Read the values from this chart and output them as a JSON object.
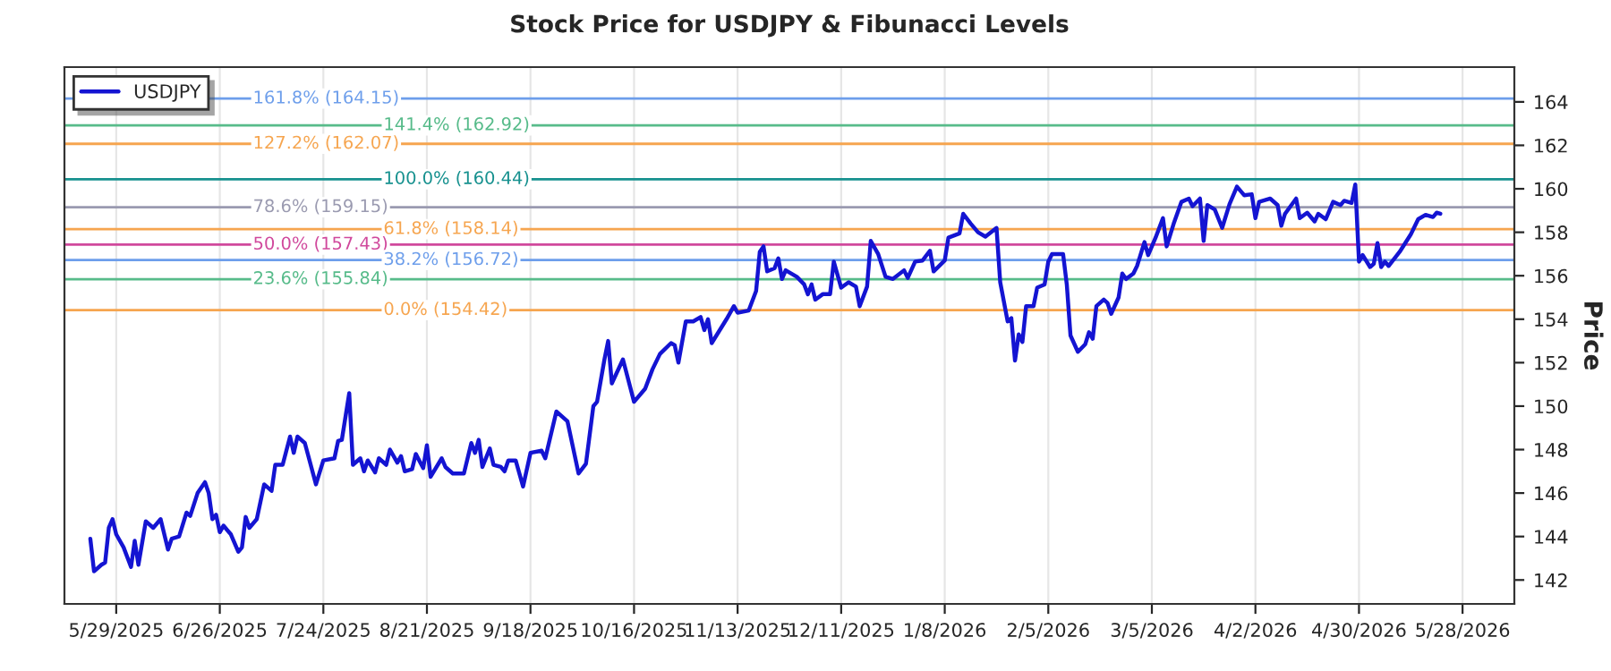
{
  "chart_data": {
    "type": "line",
    "title": "Stock Price for USDJPY & Fibunacci Levels",
    "ylabel": "Price",
    "x": [
      "2025-05-22",
      "2025-05-23",
      "2025-05-25",
      "2025-05-26",
      "2025-05-27",
      "2025-05-28",
      "2025-05-29",
      "2025-05-31",
      "2025-06-02",
      "2025-06-03",
      "2025-06-04",
      "2025-06-06",
      "2025-06-08",
      "2025-06-10",
      "2025-06-12",
      "2025-06-13",
      "2025-06-15",
      "2025-06-17",
      "2025-06-18",
      "2025-06-20",
      "2025-06-22",
      "2025-06-23",
      "2025-06-24",
      "2025-06-25",
      "2025-06-26",
      "2025-06-27",
      "2025-06-29",
      "2025-07-01",
      "2025-07-02",
      "2025-07-03",
      "2025-07-04",
      "2025-07-06",
      "2025-07-08",
      "2025-07-10",
      "2025-07-11",
      "2025-07-13",
      "2025-07-15",
      "2025-07-16",
      "2025-07-17",
      "2025-07-19",
      "2025-07-22",
      "2025-07-24",
      "2025-07-27",
      "2025-07-28",
      "2025-07-29",
      "2025-07-31",
      "2025-08-01",
      "2025-08-03",
      "2025-08-04",
      "2025-08-05",
      "2025-08-07",
      "2025-08-08",
      "2025-08-10",
      "2025-08-11",
      "2025-08-13",
      "2025-08-14",
      "2025-08-15",
      "2025-08-17",
      "2025-08-18",
      "2025-08-20",
      "2025-08-21",
      "2025-08-22",
      "2025-08-25",
      "2025-08-26",
      "2025-08-28",
      "2025-08-31",
      "2025-09-02",
      "2025-09-03",
      "2025-09-04",
      "2025-09-05",
      "2025-09-07",
      "2025-09-08",
      "2025-09-10",
      "2025-09-11",
      "2025-09-12",
      "2025-09-14",
      "2025-09-16",
      "2025-09-18",
      "2025-09-21",
      "2025-09-22",
      "2025-09-25",
      "2025-09-28",
      "2025-10-01",
      "2025-10-03",
      "2025-10-05",
      "2025-10-06",
      "2025-10-08",
      "2025-10-09",
      "2025-10-10",
      "2025-10-13",
      "2025-10-16",
      "2025-10-19",
      "2025-10-21",
      "2025-10-23",
      "2025-10-26",
      "2025-10-27",
      "2025-10-28",
      "2025-10-30",
      "2025-11-01",
      "2025-11-03",
      "2025-11-04",
      "2025-11-05",
      "2025-11-06",
      "2025-11-10",
      "2025-11-12",
      "2025-11-13",
      "2025-11-16",
      "2025-11-18",
      "2025-11-19",
      "2025-11-20",
      "2025-11-21",
      "2025-11-23",
      "2025-11-24",
      "2025-11-25",
      "2025-11-26",
      "2025-11-29",
      "2025-12-01",
      "2025-12-02",
      "2025-12-03",
      "2025-12-04",
      "2025-12-06",
      "2025-12-08",
      "2025-12-09",
      "2025-12-11",
      "2025-12-13",
      "2025-12-15",
      "2025-12-16",
      "2025-12-18",
      "2025-12-19",
      "2025-12-21",
      "2025-12-23",
      "2025-12-25",
      "2025-12-28",
      "2025-12-29",
      "2025-12-31",
      "2026-01-02",
      "2026-01-04",
      "2026-01-05",
      "2026-01-08",
      "2026-01-09",
      "2026-01-12",
      "2026-01-13",
      "2026-01-15",
      "2026-01-17",
      "2026-01-19",
      "2026-01-22",
      "2026-01-23",
      "2026-01-25",
      "2026-01-26",
      "2026-01-27",
      "2026-01-28",
      "2026-01-29",
      "2026-01-30",
      "2026-02-01",
      "2026-02-02",
      "2026-02-04",
      "2026-02-05",
      "2026-02-06",
      "2026-02-09",
      "2026-02-10",
      "2026-02-11",
      "2026-02-13",
      "2026-02-15",
      "2026-02-16",
      "2026-02-17",
      "2026-02-18",
      "2026-02-20",
      "2026-02-21",
      "2026-02-22",
      "2026-02-24",
      "2026-02-25",
      "2026-02-26",
      "2026-02-28",
      "2026-03-01",
      "2026-03-03",
      "2026-03-04",
      "2026-03-06",
      "2026-03-08",
      "2026-03-09",
      "2026-03-11",
      "2026-03-13",
      "2026-03-15",
      "2026-03-16",
      "2026-03-18",
      "2026-03-19",
      "2026-03-20",
      "2026-03-22",
      "2026-03-24",
      "2026-03-26",
      "2026-03-28",
      "2026-03-30",
      "2026-04-01",
      "2026-04-02",
      "2026-04-03",
      "2026-04-06",
      "2026-04-08",
      "2026-04-09",
      "2026-04-10",
      "2026-04-13",
      "2026-04-14",
      "2026-04-16",
      "2026-04-18",
      "2026-04-19",
      "2026-04-21",
      "2026-04-23",
      "2026-04-25",
      "2026-04-26",
      "2026-04-28",
      "2026-04-29",
      "2026-04-30",
      "2026-05-01",
      "2026-05-03",
      "2026-05-04",
      "2026-05-05",
      "2026-05-06",
      "2026-05-07",
      "2026-05-08",
      "2026-05-11",
      "2026-05-14",
      "2026-05-16",
      "2026-05-18",
      "2026-05-20",
      "2026-05-21",
      "2026-05-22"
    ],
    "series": [
      {
        "name": "USDJPY",
        "color": "#1414d2",
        "values": [
          143.9,
          142.4,
          142.7,
          142.8,
          144.4,
          144.8,
          144.1,
          143.5,
          142.6,
          143.8,
          142.7,
          144.7,
          144.4,
          144.8,
          143.4,
          143.9,
          144.0,
          145.1,
          144.95,
          146.0,
          146.5,
          146.0,
          144.8,
          145.0,
          144.2,
          144.5,
          144.1,
          143.3,
          143.5,
          144.9,
          144.4,
          144.8,
          146.4,
          146.1,
          147.3,
          147.3,
          148.6,
          147.85,
          148.6,
          148.3,
          146.4,
          147.5,
          147.6,
          148.4,
          148.45,
          150.6,
          147.3,
          147.6,
          147.0,
          147.5,
          146.95,
          147.6,
          147.3,
          148.0,
          147.4,
          147.7,
          147.0,
          147.1,
          147.8,
          147.15,
          148.2,
          146.75,
          147.6,
          147.2,
          146.9,
          146.9,
          148.3,
          147.85,
          148.45,
          147.2,
          148.05,
          147.3,
          147.2,
          147.0,
          147.5,
          147.5,
          146.3,
          147.85,
          147.95,
          147.6,
          149.75,
          149.3,
          146.9,
          147.35,
          150.0,
          150.2,
          152.15,
          153.0,
          151.05,
          152.15,
          150.2,
          150.8,
          151.7,
          152.4,
          152.9,
          152.8,
          152.0,
          153.9,
          153.9,
          154.1,
          153.5,
          154.0,
          152.9,
          154.0,
          154.6,
          154.3,
          154.4,
          155.3,
          157.1,
          157.35,
          156.2,
          156.35,
          156.8,
          155.85,
          156.25,
          155.95,
          155.6,
          155.15,
          155.6,
          154.9,
          155.15,
          155.15,
          156.65,
          155.45,
          155.7,
          155.5,
          154.6,
          155.5,
          157.6,
          157.0,
          155.95,
          155.85,
          156.25,
          155.9,
          156.65,
          156.7,
          157.15,
          156.2,
          156.7,
          157.75,
          157.95,
          158.85,
          158.4,
          158.0,
          157.8,
          158.2,
          155.7,
          153.9,
          154.05,
          152.1,
          153.3,
          152.95,
          154.6,
          154.6,
          155.45,
          155.6,
          156.65,
          157.0,
          157.0,
          155.6,
          153.25,
          152.5,
          152.85,
          153.4,
          153.1,
          154.6,
          154.9,
          154.75,
          154.25,
          155.0,
          156.1,
          155.85,
          156.1,
          156.45,
          157.55,
          156.95,
          157.75,
          158.65,
          157.35,
          158.45,
          159.4,
          159.55,
          159.2,
          159.55,
          157.6,
          159.25,
          159.05,
          158.2,
          159.3,
          160.1,
          159.7,
          159.75,
          158.65,
          159.4,
          159.55,
          159.25,
          158.3,
          158.85,
          159.55,
          158.65,
          158.9,
          158.5,
          158.85,
          158.6,
          159.4,
          159.25,
          159.45,
          159.35,
          160.2,
          156.65,
          156.95,
          156.4,
          156.55,
          157.5,
          156.4,
          156.65,
          156.45,
          157.1,
          157.9,
          158.6,
          158.8,
          158.7,
          158.9,
          158.85
        ]
      }
    ],
    "ref_lines": [
      {
        "axis": "y",
        "value": 164.15,
        "label": "161.8% (164.15)",
        "color": "#6d9eeb"
      },
      {
        "axis": "y",
        "value": 162.92,
        "label": "141.4% (162.92)",
        "color": "#57bb8a"
      },
      {
        "axis": "y",
        "value": 162.07,
        "label": "127.2% (162.07)",
        "color": "#f6a54f"
      },
      {
        "axis": "y",
        "value": 160.44,
        "label": "100.0% (160.44)",
        "color": "#17918f"
      },
      {
        "axis": "y",
        "value": 159.15,
        "label": "78.6% (159.15)",
        "color": "#9a9ab0"
      },
      {
        "axis": "y",
        "value": 158.14,
        "label": "61.8% (158.14)",
        "color": "#f6a54f"
      },
      {
        "axis": "y",
        "value": 157.43,
        "label": "50.0% (157.43)",
        "color": "#d0489c"
      },
      {
        "axis": "y",
        "value": 156.72,
        "label": "38.2% (156.72)",
        "color": "#6d9eeb"
      },
      {
        "axis": "y",
        "value": 155.84,
        "label": "23.6% (155.84)",
        "color": "#57bb8a"
      },
      {
        "axis": "y",
        "value": 154.42,
        "label": "0.0% (154.42)",
        "color": "#f6a54f"
      }
    ],
    "xlim": [
      "2025-05-15",
      "2026-06-11"
    ],
    "xticks": [
      {
        "value": "2025-05-29",
        "label": "5/29/2025"
      },
      {
        "value": "2025-06-26",
        "label": "6/26/2025"
      },
      {
        "value": "2025-07-24",
        "label": "7/24/2025"
      },
      {
        "value": "2025-08-21",
        "label": "8/21/2025"
      },
      {
        "value": "2025-09-18",
        "label": "9/18/2025"
      },
      {
        "value": "2025-10-16",
        "label": "10/16/2025"
      },
      {
        "value": "2025-11-13",
        "label": "11/13/2025"
      },
      {
        "value": "2025-12-11",
        "label": "12/11/2025"
      },
      {
        "value": "2026-01-08",
        "label": "1/8/2026"
      },
      {
        "value": "2026-02-05",
        "label": "2/5/2026"
      },
      {
        "value": "2026-03-05",
        "label": "3/5/2026"
      },
      {
        "value": "2026-04-02",
        "label": "4/2/2026"
      },
      {
        "value": "2026-04-30",
        "label": "4/30/2026"
      },
      {
        "value": "2026-05-28",
        "label": "5/28/2026"
      }
    ],
    "ylim": [
      140.9,
      165.6
    ],
    "yticks": [
      142,
      144,
      146,
      148,
      150,
      152,
      154,
      156,
      158,
      160,
      162,
      164
    ],
    "grid": "x",
    "legend": "top left"
  }
}
